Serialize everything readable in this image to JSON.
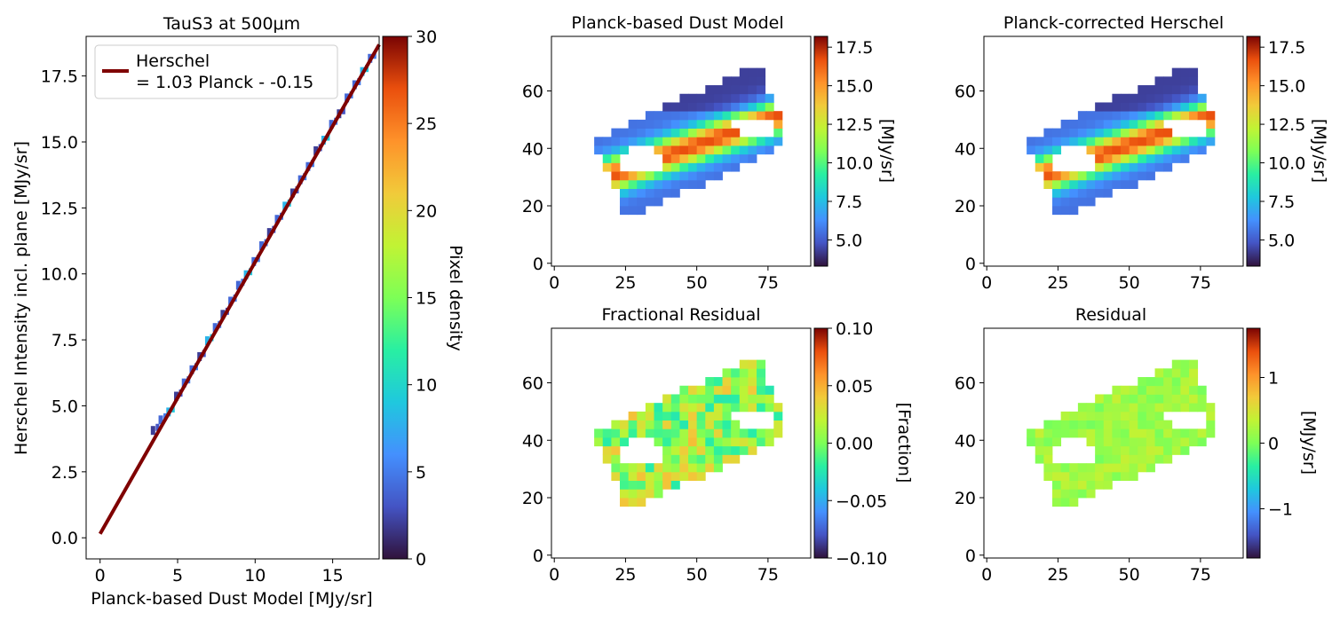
{
  "chart_data": [
    {
      "type": "heatmap",
      "title": "TauS3 at 500μm",
      "xlabel": "Planck-based Dust Model [MJy/sr]",
      "ylabel": "Herschel Intensity incl. plane [MJy/sr]",
      "xlim": [
        -0.9,
        18
      ],
      "ylim": [
        -0.8,
        19
      ],
      "xticks": [
        "0",
        "5",
        "10",
        "15"
      ],
      "yticks": [
        "0.0",
        "2.5",
        "5.0",
        "7.5",
        "10.0",
        "12.5",
        "15.0",
        "17.5"
      ],
      "fit": {
        "slope": 1.03,
        "intercept": 0.15,
        "x": [
          0,
          18
        ],
        "color": "#7f0000"
      },
      "legend": {
        "location": "upper-left",
        "label_line1": "Herschel",
        "label_line2": "= 1.03 Planck - -0.15"
      },
      "density_points": [
        [
          3.5,
          4.0
        ],
        [
          4.0,
          4.4
        ],
        [
          4.5,
          4.7
        ],
        [
          5.0,
          5.3
        ],
        [
          5.5,
          5.8
        ],
        [
          6.0,
          6.3
        ],
        [
          6.5,
          6.8
        ],
        [
          7.0,
          7.4
        ],
        [
          7.5,
          7.9
        ],
        [
          8.0,
          8.4
        ],
        [
          8.5,
          8.9
        ],
        [
          9.0,
          9.5
        ],
        [
          9.5,
          9.9
        ],
        [
          10.0,
          10.4
        ],
        [
          10.5,
          11.0
        ],
        [
          11.0,
          11.5
        ],
        [
          11.5,
          12.0
        ],
        [
          12.0,
          12.5
        ],
        [
          12.5,
          13.0
        ],
        [
          13.0,
          13.5
        ],
        [
          13.5,
          14.0
        ],
        [
          14.0,
          14.6
        ],
        [
          14.5,
          15.0
        ],
        [
          15.0,
          15.6
        ],
        [
          15.5,
          16.0
        ],
        [
          16.0,
          16.6
        ],
        [
          16.5,
          17.1
        ],
        [
          17.0,
          17.6
        ],
        [
          17.5,
          18.1
        ]
      ],
      "colorbar": {
        "label": "Pixel density",
        "min": 0,
        "max": 30,
        "ticks": [
          "0",
          "5",
          "10",
          "15",
          "20",
          "25",
          "30"
        ]
      }
    },
    {
      "type": "heatmap",
      "title": "Planck-based Dust Model",
      "xlim": [
        -1,
        90
      ],
      "ylim": [
        -1,
        79
      ],
      "xticks": [
        "0",
        "25",
        "50",
        "75"
      ],
      "yticks": [
        "0",
        "20",
        "40",
        "60"
      ],
      "colorbar": {
        "label": "[MJy/sr]",
        "min": 3.3,
        "max": 18.2,
        "ticks": [
          "5.0",
          "7.5",
          "10.0",
          "12.5",
          "15.0",
          "17.5"
        ]
      }
    },
    {
      "type": "heatmap",
      "title": "Planck-corrected Herschel",
      "xlim": [
        -1,
        90
      ],
      "ylim": [
        -1,
        79
      ],
      "xticks": [
        "0",
        "25",
        "50",
        "75"
      ],
      "yticks": [
        "0",
        "20",
        "40",
        "60"
      ],
      "colorbar": {
        "label": "[MJy/sr]",
        "min": 3.3,
        "max": 18.2,
        "ticks": [
          "5.0",
          "7.5",
          "10.0",
          "12.5",
          "15.0",
          "17.5"
        ]
      }
    },
    {
      "type": "heatmap",
      "title": "Fractional Residual",
      "xlim": [
        -1,
        90
      ],
      "ylim": [
        -1,
        79
      ],
      "xticks": [
        "0",
        "25",
        "50",
        "75"
      ],
      "yticks": [
        "0",
        "20",
        "40",
        "60"
      ],
      "colorbar": {
        "label": "[Fraction]",
        "min": -0.1,
        "max": 0.1,
        "ticks": [
          "−0.10",
          "−0.05",
          "0.00",
          "0.05",
          "0.10"
        ]
      }
    },
    {
      "type": "heatmap",
      "title": "Residual",
      "xlim": [
        -1,
        90
      ],
      "ylim": [
        -1,
        79
      ],
      "xticks": [
        "0",
        "25",
        "50",
        "75"
      ],
      "yticks": [
        "0",
        "20",
        "40",
        "60"
      ],
      "colorbar": {
        "label": "[MJy/sr]",
        "min": -1.75,
        "max": 1.75,
        "ticks": [
          "−1",
          "0",
          "1"
        ]
      }
    }
  ]
}
